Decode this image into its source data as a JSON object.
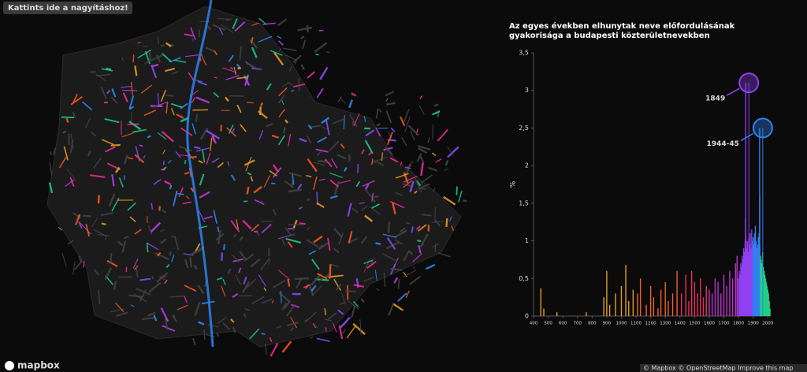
{
  "button": "Kattints ide a nagyításhoz!",
  "logo": "mapbox",
  "attribution": "© Mapbox © OpenStreetMap Improve this map",
  "chart_data": {
    "type": "bar",
    "title": "Az egyes években elhunytak neve előfordulásának gyakorisága a budapesti közterületnevekben",
    "ylabel": "%",
    "xlim": [
      400,
      2020
    ],
    "xticks": [
      400,
      500,
      600,
      700,
      800,
      900,
      1000,
      1100,
      1200,
      1300,
      1400,
      1500,
      1600,
      1700,
      1800,
      1900,
      2000
    ],
    "ylim": [
      0,
      3.5
    ],
    "yticks": [
      0,
      {
        "value": 0.5,
        "label": "0,5"
      },
      1,
      {
        "value": 1.5,
        "label": "1,5"
      },
      2,
      {
        "value": 2.5,
        "label": "2,5"
      },
      3,
      {
        "value": 3.5,
        "label": "3,5"
      }
    ],
    "series": [
      {
        "color": "#e0a020",
        "x": [
          450,
          470,
          560,
          760,
          880,
          900,
          920,
          960,
          1000,
          1030,
          1050,
          1080
        ],
        "values": [
          0.37,
          0.1,
          0.05,
          0.05,
          0.25,
          0.6,
          0.15,
          0.3,
          0.4,
          0.68,
          0.2,
          0.35
        ]
      },
      {
        "color": "#f06020",
        "x": [
          1110,
          1130,
          1170,
          1200,
          1220,
          1250,
          1270,
          1300,
          1320,
          1350,
          1380
        ],
        "values": [
          0.3,
          0.5,
          0.15,
          0.4,
          0.25,
          0.1,
          0.35,
          0.45,
          0.2,
          0.3,
          0.6
        ]
      },
      {
        "color": "#e83060",
        "x": [
          1410,
          1440,
          1460,
          1480,
          1500,
          1520,
          1540,
          1560,
          1580
        ],
        "values": [
          0.3,
          0.55,
          0.2,
          0.6,
          0.45,
          0.3,
          0.5,
          0.25,
          0.4
        ]
      },
      {
        "color": "#c030d0",
        "x": [
          1600,
          1620,
          1640,
          1660,
          1680,
          1700,
          1720,
          1740,
          1760,
          1780,
          1790
        ],
        "values": [
          0.35,
          0.3,
          0.5,
          0.45,
          0.3,
          0.55,
          0.4,
          0.6,
          0.5,
          0.7,
          0.8
        ]
      },
      {
        "color": "#9040f0",
        "x": [
          1800,
          1805,
          1810,
          1815,
          1820,
          1825,
          1830,
          1835,
          1840,
          1845,
          1848,
          1849,
          1850,
          1855,
          1860,
          1865,
          1870,
          1875,
          1880,
          1885,
          1890,
          1895
        ],
        "values": [
          0.5,
          0.6,
          0.55,
          0.7,
          0.65,
          0.8,
          0.75,
          0.9,
          0.85,
          1.0,
          1.3,
          3.1,
          1.1,
          0.9,
          1.0,
          0.85,
          1.05,
          0.95,
          1.1,
          0.9,
          1.15,
          1.0
        ]
      },
      {
        "color": "#3080f0",
        "x": [
          1900,
          1905,
          1910,
          1915,
          1920,
          1925,
          1930,
          1935,
          1940,
          1944,
          1945,
          1946
        ],
        "values": [
          1.05,
          0.95,
          1.1,
          1.2,
          1.0,
          0.9,
          0.95,
          1.05,
          1.1,
          2.5,
          1.6,
          0.95
        ]
      },
      {
        "color": "#20d080",
        "x": [
          1950,
          1955,
          1960,
          1965,
          1970,
          1975,
          1980,
          1985,
          1990,
          1995,
          2000,
          2005,
          2010,
          2015
        ],
        "values": [
          0.8,
          0.75,
          0.7,
          0.85,
          0.65,
          0.6,
          0.55,
          0.5,
          0.45,
          0.4,
          0.35,
          0.3,
          0.2,
          0.1
        ]
      }
    ],
    "annotations": [
      {
        "text": "1849",
        "x": 1849,
        "y": 3.1,
        "color": "#9040f0"
      },
      {
        "text": "1944-45",
        "x": 1944,
        "y": 2.5,
        "color": "#3080f0"
      }
    ]
  }
}
